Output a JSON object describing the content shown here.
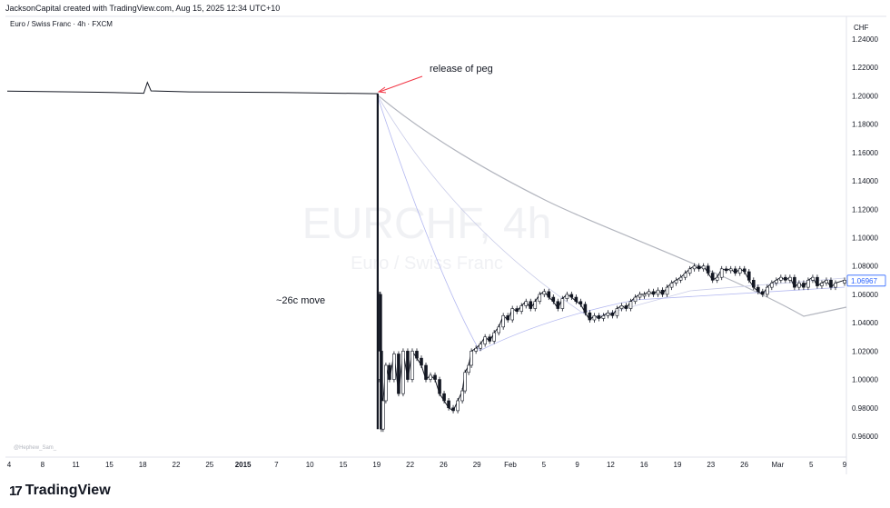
{
  "header": "JacksonCapital created with TradingView.com, Aug 15, 2025 12:34 UTC+10",
  "symbol_line": "Euro / Swiss Franc · 4h · FXCM",
  "currency": "CHF",
  "watermark": {
    "ticker": "EURCHF, 4h",
    "name": "Euro / Swiss Franc"
  },
  "credit": "@Hephew_Sam_",
  "annotations": {
    "peg": "release of peg",
    "move": "~26c move"
  },
  "footer": {
    "logo_glyph": "17",
    "brand": "TradingView"
  },
  "colors": {
    "candle": "#131722",
    "arrow": "#f23645",
    "ma_gray": "#b2b5be",
    "ma_blue": "#b3b8f0",
    "last_price": "#2962ff"
  },
  "chart_data": {
    "type": "candlestick",
    "title": "EURCHF, 4h",
    "ylabel": "CHF",
    "ylim": [
      0.95,
      1.25
    ],
    "y_ticks": [
      "1.24000",
      "1.22000",
      "1.20000",
      "1.18000",
      "1.16000",
      "1.14000",
      "1.12000",
      "1.10000",
      "1.08000",
      "1.06000",
      "1.04000",
      "1.02000",
      "1.00000",
      "0.98000",
      "0.96000"
    ],
    "x_ticks": [
      "4",
      "8",
      "11",
      "15",
      "18",
      "22",
      "25",
      "2015",
      "7",
      "10",
      "15",
      "19",
      "22",
      "26",
      "29",
      "Feb",
      "5",
      "9",
      "12",
      "16",
      "19",
      "23",
      "26",
      "Mar",
      "5",
      "9"
    ],
    "last_price": "1.06967",
    "price_path": [
      [
        0,
        1.2033
      ],
      [
        100,
        1.2025
      ],
      [
        150,
        1.2018
      ],
      [
        154,
        1.2095
      ],
      [
        158,
        1.2035
      ],
      [
        200,
        1.2028
      ],
      [
        300,
        1.2023
      ],
      [
        407,
        1.2015
      ],
      [
        407,
        1.18
      ],
      [
        408,
        1.0
      ],
      [
        409,
        1.06
      ],
      [
        410,
        1.02
      ],
      [
        411,
        0.965
      ],
      [
        413,
        0.985
      ],
      [
        416,
        1.01
      ],
      [
        420,
        1.0
      ],
      [
        425,
        1.018
      ],
      [
        430,
        0.99
      ],
      [
        435,
        1.02
      ],
      [
        440,
        1.0
      ],
      [
        445,
        1.02
      ],
      [
        450,
        1.015
      ],
      [
        455,
        1.01
      ],
      [
        460,
        1.0
      ],
      [
        465,
        1.003
      ],
      [
        470,
        1.0
      ],
      [
        475,
        0.99
      ],
      [
        480,
        0.985
      ],
      [
        485,
        0.98
      ],
      [
        490,
        0.978
      ],
      [
        495,
        0.985
      ],
      [
        500,
        0.992
      ],
      [
        503,
        1.005
      ],
      [
        507,
        1.01
      ],
      [
        510,
        1.02
      ],
      [
        515,
        1.022
      ],
      [
        520,
        1.025
      ],
      [
        525,
        1.03
      ],
      [
        530,
        1.027
      ],
      [
        535,
        1.033
      ],
      [
        540,
        1.037
      ],
      [
        545,
        1.045
      ],
      [
        550,
        1.042
      ],
      [
        555,
        1.05
      ],
      [
        560,
        1.048
      ],
      [
        565,
        1.052
      ],
      [
        570,
        1.055
      ],
      [
        575,
        1.05
      ],
      [
        580,
        1.055
      ],
      [
        585,
        1.06
      ],
      [
        590,
        1.062
      ],
      [
        595,
        1.058
      ],
      [
        600,
        1.055
      ],
      [
        605,
        1.05
      ],
      [
        610,
        1.057
      ],
      [
        615,
        1.06
      ],
      [
        620,
        1.058
      ],
      [
        625,
        1.055
      ],
      [
        630,
        1.053
      ],
      [
        635,
        1.047
      ],
      [
        640,
        1.042
      ],
      [
        645,
        1.045
      ],
      [
        650,
        1.043
      ],
      [
        655,
        1.045
      ],
      [
        660,
        1.047
      ],
      [
        665,
        1.045
      ],
      [
        670,
        1.05
      ],
      [
        675,
        1.052
      ],
      [
        680,
        1.05
      ],
      [
        685,
        1.055
      ],
      [
        690,
        1.058
      ],
      [
        695,
        1.06
      ],
      [
        700,
        1.06
      ],
      [
        705,
        1.062
      ],
      [
        710,
        1.06
      ],
      [
        715,
        1.063
      ],
      [
        720,
        1.06
      ],
      [
        725,
        1.065
      ],
      [
        730,
        1.068
      ],
      [
        735,
        1.07
      ],
      [
        740,
        1.072
      ],
      [
        745,
        1.075
      ],
      [
        750,
        1.078
      ],
      [
        755,
        1.08
      ],
      [
        760,
        1.078
      ],
      [
        765,
        1.08
      ],
      [
        770,
        1.075
      ],
      [
        775,
        1.07
      ],
      [
        780,
        1.072
      ],
      [
        785,
        1.078
      ],
      [
        790,
        1.077
      ],
      [
        795,
        1.078
      ],
      [
        800,
        1.075
      ],
      [
        805,
        1.078
      ],
      [
        810,
        1.076
      ],
      [
        815,
        1.07
      ],
      [
        820,
        1.065
      ],
      [
        825,
        1.062
      ],
      [
        830,
        1.06
      ],
      [
        835,
        1.065
      ],
      [
        840,
        1.068
      ],
      [
        845,
        1.07
      ],
      [
        850,
        1.072
      ],
      [
        855,
        1.07
      ],
      [
        860,
        1.072
      ],
      [
        865,
        1.065
      ],
      [
        870,
        1.068
      ],
      [
        875,
        1.065
      ],
      [
        880,
        1.07
      ],
      [
        885,
        1.072
      ],
      [
        890,
        1.066
      ],
      [
        895,
        1.068
      ],
      [
        900,
        1.07
      ],
      [
        905,
        1.065
      ],
      [
        910,
        1.068
      ],
      [
        920,
        1.07
      ]
    ]
  }
}
